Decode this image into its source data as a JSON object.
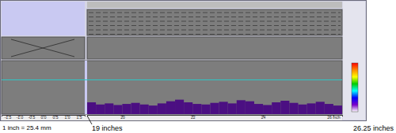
{
  "chart_data": [
    {
      "type": "histogram",
      "bins": [
        19,
        19.25,
        19.5,
        19.75,
        20,
        20.25,
        20.5,
        20.75,
        21,
        21.25,
        21.5,
        21.75,
        22,
        22.25,
        22.5,
        22.75,
        23,
        23.25,
        23.5,
        23.75,
        24,
        24.25,
        24.5,
        24.75,
        25,
        25.25,
        25.5,
        25.75,
        26,
        26.25
      ],
      "values": [
        22,
        18,
        20,
        17,
        19,
        21,
        18,
        16,
        20,
        24,
        27,
        22,
        19,
        18,
        21,
        23,
        20,
        26,
        24,
        19,
        17,
        22,
        25,
        21,
        18,
        20,
        23,
        19,
        16
      ],
      "color": "#4b0f82",
      "xlim": [
        19,
        26.25
      ],
      "xticks": [
        20,
        22,
        24,
        {
          "value": 26,
          "label": "26 inch"
        }
      ],
      "ylim": [
        0,
        100
      ],
      "gate": 64,
      "tick_labels": "x",
      "annotations": [
        "1 inch = 25.4 mm",
        "19 inches",
        "26.25 inches"
      ]
    },
    {
      "type": "scan",
      "xlim": [
        -1.75,
        1.75
      ],
      "xticks": [
        -1.5,
        {
          "value": -1,
          "label": "-1.0"
        },
        -0.5,
        {
          "value": 0,
          "label": "0.0"
        },
        0.5,
        {
          "value": 1,
          "label": "1.0"
        },
        1.5
      ],
      "tick_labels": "x"
    }
  ]
}
